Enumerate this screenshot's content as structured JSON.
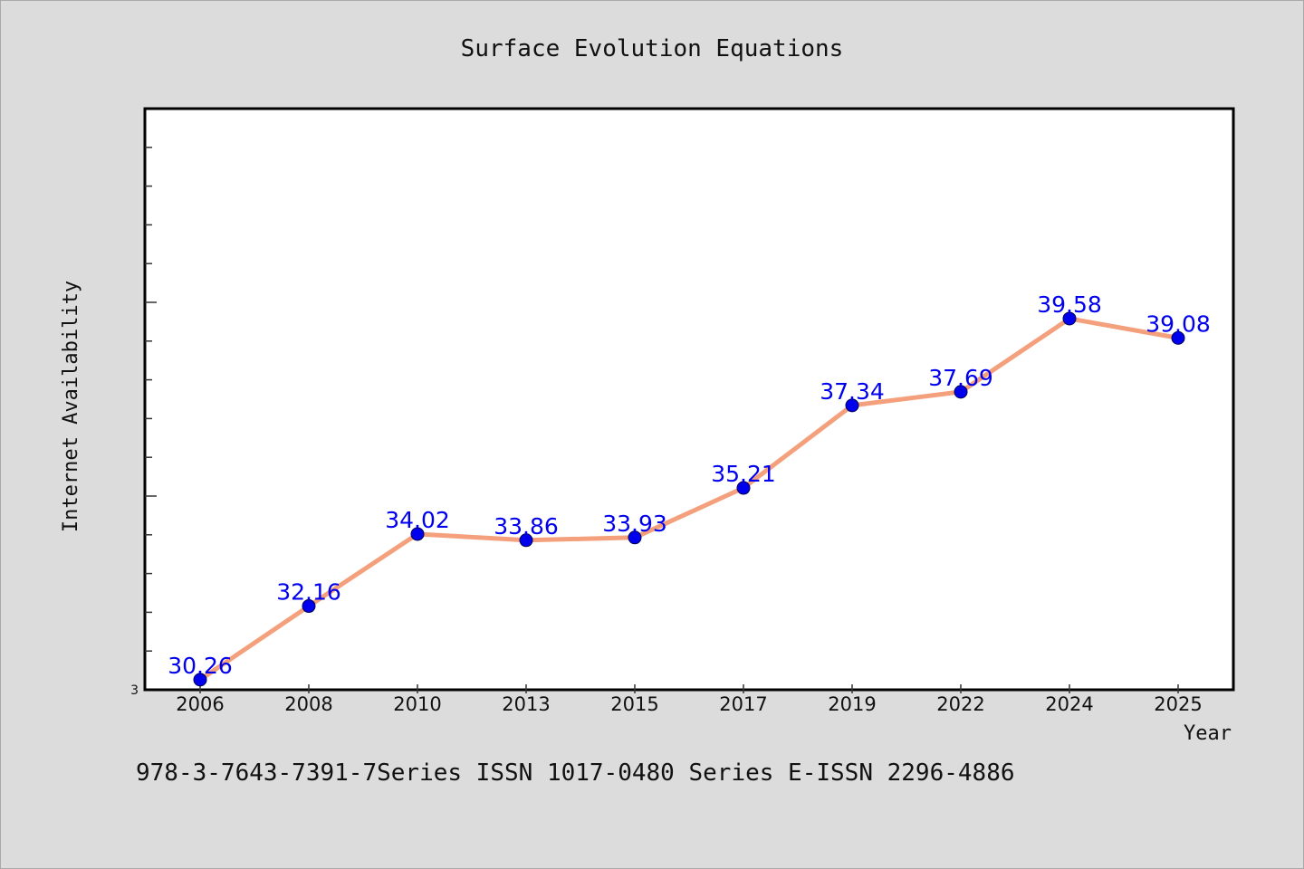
{
  "chart_data": {
    "type": "line",
    "title": "Surface Evolution Equations",
    "xlabel": "Year",
    "ylabel": "Internet Availability",
    "categories": [
      "2006",
      "2008",
      "2010",
      "2013",
      "2015",
      "2017",
      "2019",
      "2022",
      "2024",
      "2025"
    ],
    "series": [
      {
        "values": [
          30.26,
          32.16,
          34.02,
          33.86,
          33.93,
          35.21,
          37.34,
          37.69,
          39.58,
          39.08
        ],
        "labels": [
          "30.26",
          "32.16",
          "34.02",
          "33.86",
          "33.93",
          "35.21",
          "37.34",
          "37.69",
          "39.58",
          "39.08"
        ]
      }
    ],
    "y_tick_labels": [
      "3"
    ],
    "ylim": [
      30,
      45
    ],
    "grid": false,
    "line_color": "#f4a07c",
    "marker_color": "#0000ee",
    "label_color": "#0000ee",
    "plot_background": "#ffffff",
    "figure_background": "#dcdcdc"
  },
  "footer": {
    "text": "978-3-7643-7391-7Series ISSN 1017-0480 Series E-ISSN 2296-4886"
  }
}
